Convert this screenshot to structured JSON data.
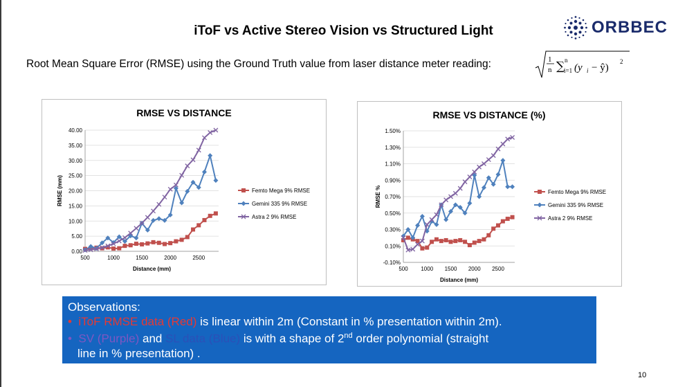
{
  "slide": {
    "title": "iToF vs Active Stereo Vision vs Structured Light",
    "subtitle": "Root Mean Square Error (RMSE) using the Ground Truth value from laser distance meter reading:",
    "page_number": "10"
  },
  "logo": {
    "text": "ORBBEC",
    "color": "#1a2b6b"
  },
  "observations": {
    "title": "Observations:",
    "bullet1_colored": "iToF RMSE data (Red)",
    "bullet1_rest": " is linear within 2m (Constant in % presentation within 2m).",
    "bullet2_sv": "SV (Purple)",
    "bullet2_and": " and ",
    "bullet2_sl": "SL data (Blue)",
    "bullet2_rest1": " is with a shape of 2",
    "bullet2_sup": "nd",
    "bullet2_rest2": " order polynomial   (straight",
    "bullet2_line2": "line in % presentation) ."
  },
  "chart_data": [
    {
      "type": "line",
      "title": "RMSE VS DISTANCE",
      "xlabel": "Distance (mm)",
      "ylabel": "RMSE (mm)",
      "xlim": [
        500,
        2850
      ],
      "ylim": [
        0,
        40
      ],
      "xticks": [
        "500",
        "1000",
        "1500",
        "2000",
        "2500"
      ],
      "yticks": [
        "0.00",
        "5.00",
        "10.00",
        "15.00",
        "20.00",
        "25.00",
        "30.00",
        "35.00",
        "40.00"
      ],
      "legend_position": "right",
      "x": [
        500,
        600,
        700,
        800,
        900,
        1000,
        1100,
        1200,
        1300,
        1400,
        1500,
        1600,
        1700,
        1800,
        1900,
        2000,
        2100,
        2200,
        2300,
        2400,
        2500,
        2600,
        2700,
        2800
      ],
      "series": [
        {
          "name": "Femto Mega 9% RMSE",
          "color": "#c0504d",
          "marker": "square",
          "values": [
            0.8,
            1.0,
            1.2,
            1.0,
            1.3,
            0.9,
            1.0,
            1.8,
            2.0,
            2.5,
            2.3,
            2.6,
            3.0,
            2.8,
            2.4,
            2.7,
            3.3,
            3.8,
            4.7,
            7.2,
            8.6,
            10.3,
            11.7,
            12.5
          ]
        },
        {
          "name": "Gemini 335 9% RMSE",
          "color": "#4f81bd",
          "marker": "diamond",
          "values": [
            0.5,
            1.6,
            1.0,
            2.8,
            4.4,
            2.9,
            4.8,
            3.3,
            5.1,
            4.4,
            9.3,
            7.0,
            10.2,
            10.8,
            10.2,
            12.0,
            20.8,
            16.0,
            19.8,
            22.8,
            21.1,
            26.2,
            31.6,
            23.4
          ]
        },
        {
          "name": "Astra 2 9% RMSE",
          "color": "#8064a2",
          "marker": "x",
          "values": [
            0.3,
            0.5,
            0.8,
            1.2,
            1.8,
            2.5,
            3.4,
            4.5,
            6.0,
            7.6,
            9.3,
            11.2,
            13.3,
            15.5,
            17.9,
            20.5,
            21.9,
            25.1,
            28.2,
            30.2,
            33.4,
            37.5,
            39.2,
            40.0
          ]
        }
      ]
    },
    {
      "type": "line",
      "title": "RMSE VS DISTANCE (%)",
      "xlabel": "Distance (mm)",
      "ylabel": "RMSE %",
      "xlim": [
        500,
        2850
      ],
      "ylim": [
        -0.1,
        1.5
      ],
      "xticks": [
        "500",
        "1000",
        "1500",
        "2000",
        "2500"
      ],
      "yticks": [
        "-0.10%",
        "0.10%",
        "0.30%",
        "0.50%",
        "0.70%",
        "0.90%",
        "1.10%",
        "1.30%",
        "1.50%"
      ],
      "legend_position": "right",
      "x": [
        500,
        600,
        700,
        800,
        900,
        1000,
        1100,
        1200,
        1300,
        1400,
        1500,
        1600,
        1700,
        1800,
        1900,
        2000,
        2100,
        2200,
        2300,
        2400,
        2500,
        2600,
        2700,
        2800
      ],
      "series": [
        {
          "name": "Femto Mega 9% RMSE",
          "color": "#c0504d",
          "marker": "square",
          "values": [
            0.17,
            0.2,
            0.18,
            0.16,
            0.07,
            0.08,
            0.15,
            0.18,
            0.16,
            0.17,
            0.15,
            0.16,
            0.17,
            0.15,
            0.11,
            0.14,
            0.16,
            0.18,
            0.23,
            0.31,
            0.35,
            0.4,
            0.43,
            0.45
          ]
        },
        {
          "name": "Gemini 335 9% RMSE",
          "color": "#4f81bd",
          "marker": "diamond",
          "values": [
            0.22,
            0.3,
            0.2,
            0.35,
            0.46,
            0.28,
            0.4,
            0.36,
            0.6,
            0.42,
            0.52,
            0.6,
            0.57,
            0.5,
            0.62,
            0.96,
            0.7,
            0.81,
            0.93,
            0.85,
            0.97,
            1.14,
            0.82,
            0.82
          ]
        },
        {
          "name": "Astra 2 9% RMSE",
          "color": "#8064a2",
          "marker": "x",
          "values": [
            0.2,
            0.05,
            0.06,
            0.12,
            0.16,
            0.36,
            0.42,
            0.48,
            0.6,
            0.66,
            0.7,
            0.74,
            0.8,
            0.88,
            0.94,
            1.0,
            1.06,
            1.1,
            1.15,
            1.2,
            1.28,
            1.34,
            1.4,
            1.42
          ]
        }
      ]
    }
  ]
}
